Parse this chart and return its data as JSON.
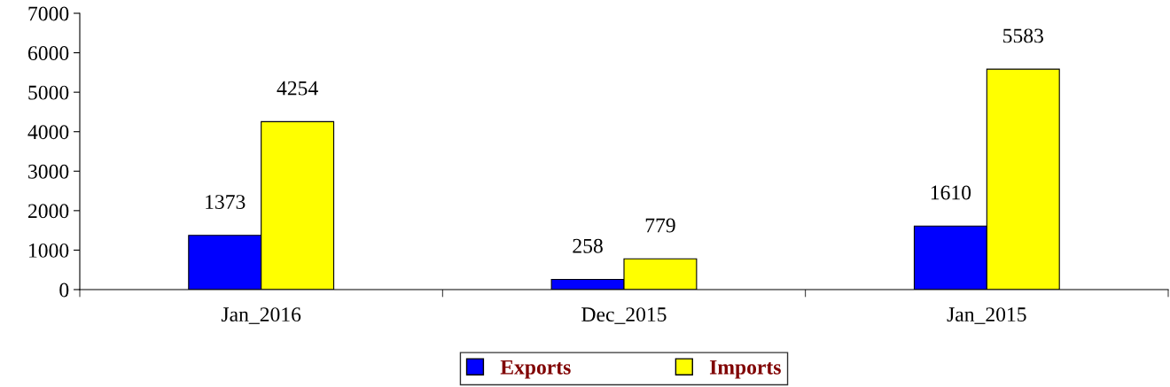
{
  "chart_data": {
    "type": "bar",
    "categories": [
      "Jan_2016",
      "Dec_2015",
      "Jan_2015"
    ],
    "series": [
      {
        "name": "Exports",
        "color": "#0000ff",
        "values": [
          1373,
          258,
          1610
        ]
      },
      {
        "name": "Imports",
        "color": "#ffff00",
        "values": [
          4254,
          779,
          5583
        ]
      }
    ],
    "ylim": [
      0,
      7000
    ],
    "yticks": [
      0,
      1000,
      2000,
      3000,
      4000,
      5000,
      6000,
      7000
    ],
    "grid": false,
    "legend": "bottom",
    "data_labels": true
  }
}
